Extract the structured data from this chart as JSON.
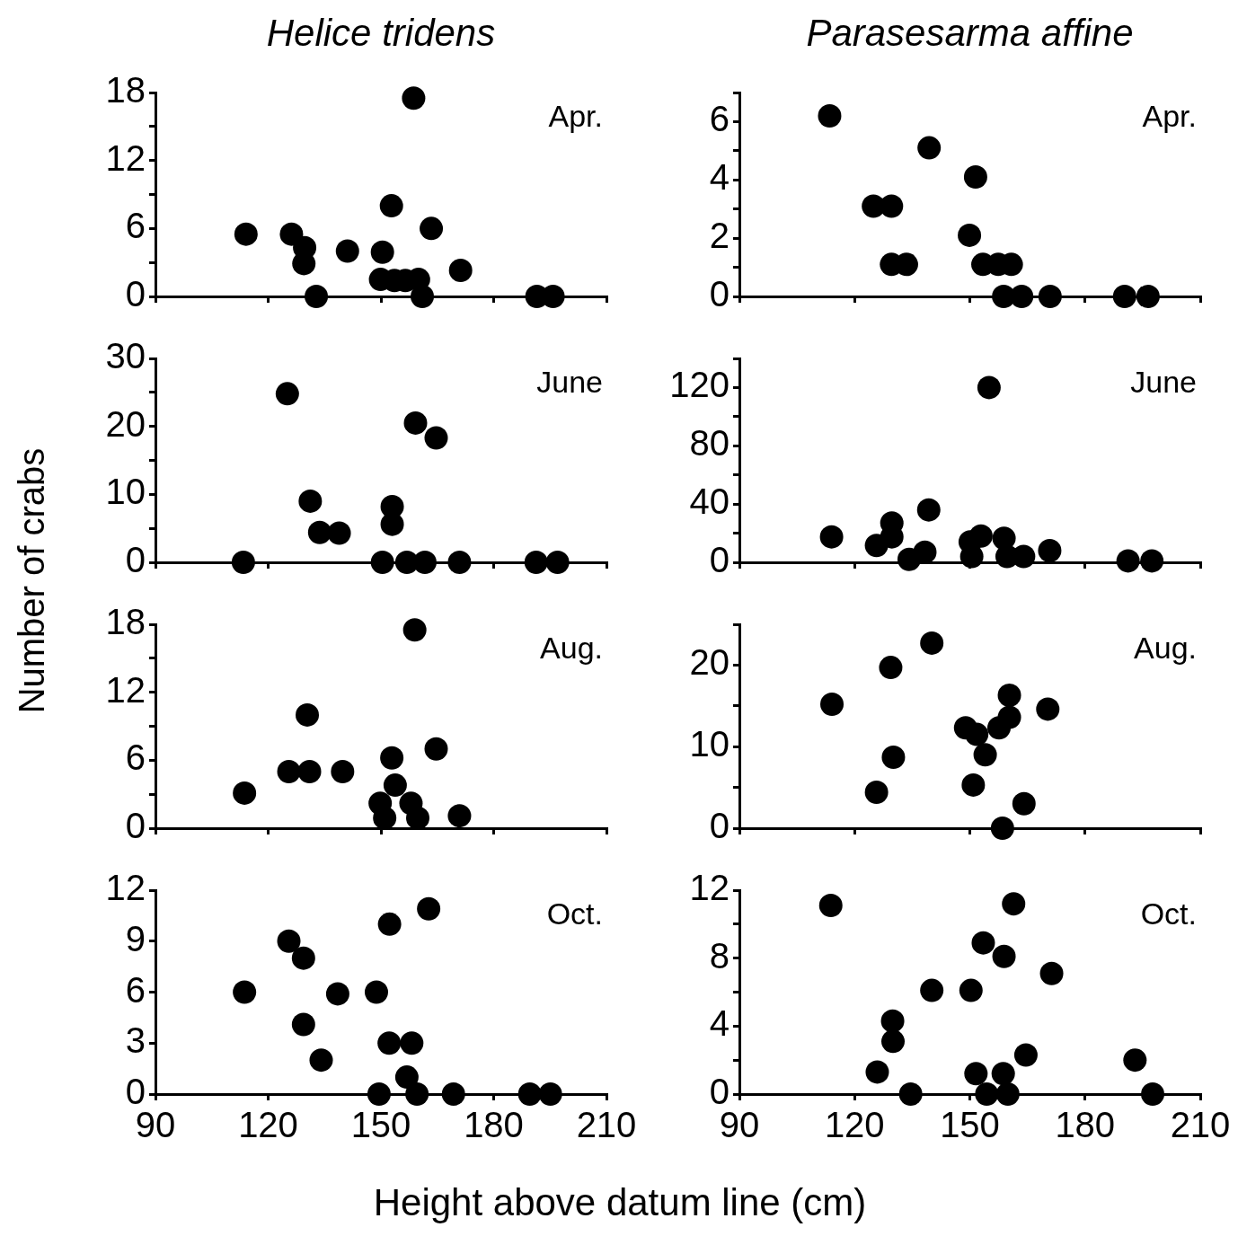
{
  "chart_data": [
    {
      "type": "scatter",
      "title": "Helice tridens",
      "ylabel": "Number of crabs",
      "annotations": [
        "Apr."
      ],
      "marker": "circle",
      "tick_labels": "y",
      "xlim": [
        90,
        210
      ],
      "xticks": [
        90,
        120,
        150,
        180,
        210
      ],
      "ylim": [
        0,
        18
      ],
      "yticks": [
        0,
        {
          "value": 3,
          "label": null
        },
        6,
        {
          "value": 9,
          "label": null
        },
        12,
        {
          "value": 15,
          "label": null
        },
        18
      ],
      "series": [
        {
          "color": "#000000",
          "x": [
            114.1,
            126.2,
            129.7,
            129.5,
            132.8,
            141.1,
            150.4,
            152.8,
            149.9,
            153.6,
            156.5,
            160,
            158.7,
            161,
            163.4,
            171.2,
            191.5,
            195.8
          ],
          "values": [
            5.5,
            5.5,
            4.3,
            2.9,
            0,
            4,
            3.9,
            8,
            1.5,
            1.4,
            1.4,
            1.5,
            17.5,
            0,
            6,
            2.3,
            0,
            0
          ]
        }
      ]
    },
    {
      "type": "scatter",
      "title": "Parasesarma affine",
      "annotations": [
        "Apr."
      ],
      "marker": "circle",
      "tick_labels": "y",
      "xlim": [
        90,
        210
      ],
      "xticks": [
        90,
        120,
        150,
        180,
        210
      ],
      "ylim": [
        0,
        7
      ],
      "yticks": [
        0,
        {
          "value": 1,
          "label": null
        },
        2,
        {
          "value": 3,
          "label": null
        },
        4,
        {
          "value": 5,
          "label": null
        },
        6,
        {
          "value": 7,
          "label": null
        }
      ],
      "series": [
        {
          "color": "#000000",
          "x": [
            113.5,
            124.9,
            129.6,
            129.6,
            133.5,
            139.4,
            151.5,
            149.9,
            153.4,
            157.4,
            160.8,
            158.8,
            163.5,
            170.9,
            190.3,
            196.4
          ],
          "values": [
            6.2,
            3.1,
            3.1,
            1.1,
            1.1,
            5.1,
            4.1,
            2.1,
            1.1,
            1.1,
            1.1,
            0,
            0,
            0,
            0,
            0
          ]
        }
      ]
    },
    {
      "type": "scatter",
      "annotations": [
        "June"
      ],
      "marker": "circle",
      "tick_labels": "y",
      "xlim": [
        90,
        210
      ],
      "xticks": [
        90,
        120,
        150,
        180,
        210
      ],
      "ylim": [
        0,
        30
      ],
      "yticks": [
        0,
        {
          "value": 5,
          "label": null
        },
        10,
        {
          "value": 15,
          "label": null
        },
        20,
        {
          "value": 25,
          "label": null
        },
        30
      ],
      "series": [
        {
          "color": "#000000",
          "x": [
            113.4,
            125.1,
            131.2,
            133.7,
            138.9,
            153,
            153,
            150.4,
            156.9,
            161.7,
            159.2,
            164.7,
            170.9,
            191.3,
            197
          ],
          "values": [
            0,
            24.8,
            9,
            4.4,
            4.3,
            8.2,
            5.6,
            0,
            0,
            0,
            20.5,
            18.3,
            0,
            0,
            0
          ]
        }
      ]
    },
    {
      "type": "scatter",
      "annotations": [
        "June"
      ],
      "marker": "circle",
      "tick_labels": "y",
      "xlim": [
        90,
        210
      ],
      "xticks": [
        90,
        120,
        150,
        180,
        210
      ],
      "ylim": [
        0,
        140
      ],
      "yticks": [
        0,
        {
          "value": 20,
          "label": null
        },
        40,
        {
          "value": 60,
          "label": null
        },
        80,
        {
          "value": 100,
          "label": null
        },
        120,
        {
          "value": 140,
          "label": null
        }
      ],
      "series": [
        {
          "color": "#000000",
          "x": [
            114,
            125.7,
            129.7,
            129.7,
            134.2,
            138.3,
            139.3,
            150.1,
            152.9,
            150.5,
            155,
            158.9,
            159.7,
            164,
            170.8,
            191.2,
            197.4
          ],
          "values": [
            17.5,
            11.6,
            27,
            17.5,
            2,
            7,
            36,
            14,
            18,
            4,
            120,
            16.5,
            4,
            4,
            8,
            1,
            1
          ]
        }
      ]
    },
    {
      "type": "scatter",
      "annotations": [
        "Aug."
      ],
      "marker": "circle",
      "tick_labels": "y",
      "xlim": [
        90,
        210
      ],
      "xticks": [
        90,
        120,
        150,
        180,
        210
      ],
      "ylim": [
        0,
        18
      ],
      "yticks": [
        0,
        {
          "value": 3,
          "label": null
        },
        6,
        {
          "value": 9,
          "label": null
        },
        12,
        {
          "value": 15,
          "label": null
        },
        18
      ],
      "series": [
        {
          "color": "#000000",
          "x": [
            113.7,
            125.5,
            131,
            139.8,
            130.4,
            159,
            152.9,
            153.8,
            149.8,
            151,
            158,
            159.8,
            164.7,
            170.9
          ],
          "values": [
            3.1,
            5,
            5,
            5,
            10,
            17.5,
            6.2,
            3.8,
            2.2,
            0.9,
            2.2,
            0.9,
            7,
            1.1
          ]
        }
      ]
    },
    {
      "type": "scatter",
      "annotations": [
        "Aug."
      ],
      "marker": "circle",
      "tick_labels": "y",
      "xlim": [
        90,
        210
      ],
      "xticks": [
        90,
        120,
        150,
        180,
        210
      ],
      "ylim": [
        0,
        25
      ],
      "yticks": [
        0,
        {
          "value": 5,
          "label": null
        },
        10,
        {
          "value": 15,
          "label": null
        },
        20,
        {
          "value": 25,
          "label": null
        }
      ],
      "series": [
        {
          "color": "#000000",
          "x": [
            114.1,
            125.7,
            129.4,
            130.1,
            140.1,
            148.9,
            151.8,
            154,
            150.9,
            157.6,
            160.3,
            160.3,
            170.3,
            164.1,
            158.5
          ],
          "values": [
            15.2,
            4.4,
            19.7,
            8.7,
            22.7,
            12.3,
            11.5,
            9,
            5.3,
            12.3,
            16.3,
            13.6,
            14.6,
            3,
            0
          ]
        }
      ]
    },
    {
      "type": "scatter",
      "xlabel": "Height above datum line (cm)",
      "annotations": [
        "Oct."
      ],
      "marker": "circle",
      "xlim": [
        90,
        210
      ],
      "xticks": [
        90,
        120,
        150,
        180,
        210
      ],
      "ylim": [
        0,
        12
      ],
      "yticks": [
        0,
        3,
        6,
        9,
        12
      ],
      "series": [
        {
          "color": "#000000",
          "x": [
            113.7,
            125.5,
            129.4,
            129.4,
            134.1,
            138.5,
            148.8,
            152.3,
            162.7,
            152.2,
            158.2,
            156.9,
            149.5,
            159.6,
            169.3,
            189.6,
            195.1
          ],
          "values": [
            6,
            9,
            8,
            4.1,
            2,
            5.9,
            6,
            10,
            10.9,
            3,
            3,
            1,
            0,
            0,
            0,
            0,
            0
          ]
        }
      ]
    },
    {
      "type": "scatter",
      "annotations": [
        "Oct."
      ],
      "marker": "circle",
      "xlim": [
        90,
        210
      ],
      "xticks": [
        90,
        120,
        150,
        180,
        210
      ],
      "ylim": [
        0,
        12
      ],
      "yticks": [
        0,
        {
          "value": 2,
          "label": null
        },
        4,
        {
          "value": 6,
          "label": null
        },
        8,
        {
          "value": 10,
          "label": null
        },
        12
      ],
      "series": [
        {
          "color": "#000000",
          "x": [
            113.8,
            125.9,
            129.9,
            130,
            134.6,
            140.1,
            150.3,
            153.5,
            151.6,
            158.7,
            154.4,
            159.9,
            158.9,
            161.4,
            171.3,
            164.6,
            193,
            197.6
          ],
          "values": [
            11.1,
            1.3,
            4.3,
            3.1,
            0,
            6.1,
            6.1,
            8.9,
            1.2,
            1.2,
            0,
            0,
            8.1,
            11.2,
            7.1,
            2.3,
            2,
            0
          ]
        }
      ]
    }
  ]
}
